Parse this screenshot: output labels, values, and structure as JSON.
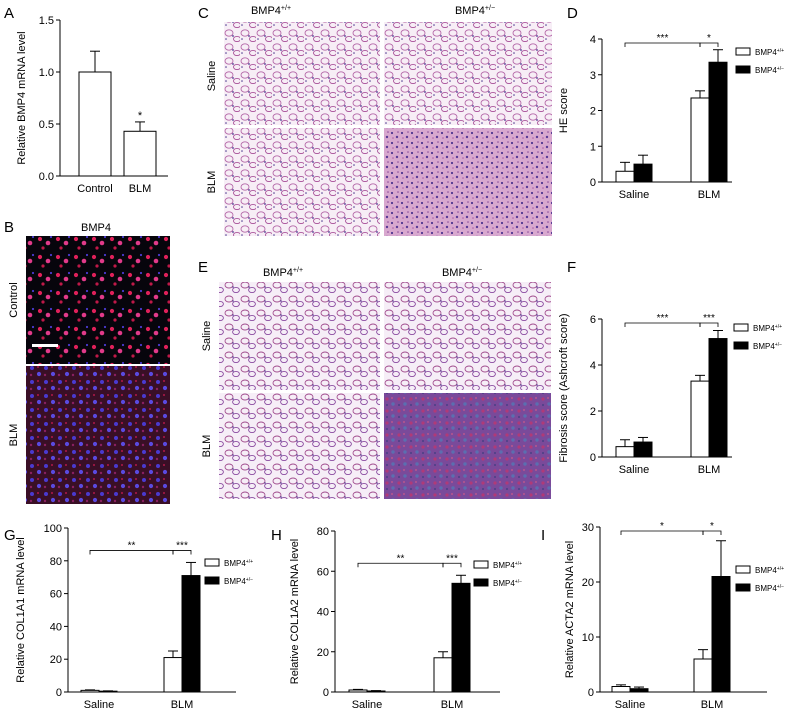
{
  "panel_letters": {
    "A": "A",
    "B": "B",
    "C": "C",
    "D": "D",
    "E": "E",
    "F": "F",
    "G": "G",
    "H": "H",
    "I": "I"
  },
  "micrographs": {
    "B": {
      "title": "BMP4",
      "row_labels": [
        "Control",
        "BLM"
      ]
    },
    "C": {
      "col_labels": [
        "BMP4+/+",
        "BMP4+/−"
      ],
      "col_base": "BMP4",
      "col_sups": [
        "+/+",
        "+/−"
      ],
      "row_labels": [
        "Saline",
        "BLM"
      ]
    },
    "E": {
      "col_labels": [
        "BMP4+/+",
        "BMP4+/−"
      ],
      "col_base": "BMP4",
      "col_sups": [
        "+/+",
        "+/−"
      ],
      "row_labels": [
        "Saline",
        "BLM"
      ]
    }
  },
  "legend": {
    "series_base": "BMP4",
    "series_sups": [
      "+/+",
      "+/−"
    ]
  },
  "colors": {
    "wildtype_bar": "#ffffff",
    "heterozygous_bar": "#000000",
    "axis": "#000000",
    "stain_he": "#a9529a",
    "stain_fluor": "#e0205a",
    "stain_nuclei": "#4a3ad0",
    "stain_trichrome": "#7a4a9a"
  },
  "chart_data": [
    {
      "panel": "A",
      "type": "bar",
      "categories": [
        "Control",
        "BLM"
      ],
      "series": [
        {
          "values": [
            1.0,
            0.43
          ],
          "errors": [
            0.2,
            0.09
          ]
        }
      ],
      "ylabel": "Relative BMP4 mRNA level",
      "ylim": [
        0,
        1.5
      ],
      "yticks": [
        0.0,
        0.5,
        1.0,
        1.5
      ],
      "ytick_labels": [
        "0.0",
        "0.5",
        "1.0",
        "1.5"
      ],
      "annotations": [
        {
          "text": "*",
          "over": "BLM"
        }
      ]
    },
    {
      "panel": "D",
      "type": "bar",
      "categories": [
        "Saline",
        "BLM"
      ],
      "series": [
        {
          "name": "BMP4+/+",
          "values": [
            0.3,
            2.35
          ],
          "errors": [
            0.25,
            0.2
          ]
        },
        {
          "name": "BMP4+/−",
          "values": [
            0.5,
            3.35
          ],
          "errors": [
            0.25,
            0.35
          ]
        }
      ],
      "ylabel": "HE score",
      "ylim": [
        0,
        4
      ],
      "yticks": [
        0,
        1,
        2,
        3,
        4
      ],
      "ytick_labels": [
        "0",
        "1",
        "2",
        "3",
        "4"
      ],
      "significance": [
        {
          "text": "***",
          "between": "Saline-BLM"
        },
        {
          "text": "*",
          "between": "BMP4+/+ vs BMP4+/− (BLM)"
        }
      ],
      "legend_position": "top-right"
    },
    {
      "panel": "F",
      "type": "bar",
      "categories": [
        "Saline",
        "BLM"
      ],
      "series": [
        {
          "name": "BMP4+/+",
          "values": [
            0.45,
            3.3
          ],
          "errors": [
            0.3,
            0.25
          ]
        },
        {
          "name": "BMP4+/−",
          "values": [
            0.65,
            5.15
          ],
          "errors": [
            0.2,
            0.35
          ]
        }
      ],
      "ylabel": "Fibrosis score (Ashcroft score)",
      "ylim": [
        0,
        6
      ],
      "yticks": [
        0,
        2,
        4,
        6
      ],
      "ytick_labels": [
        "0",
        "2",
        "4",
        "6"
      ],
      "significance": [
        {
          "text": "***",
          "between": "Saline-BLM"
        },
        {
          "text": "***",
          "between": "BMP4+/+ vs BMP4+/− (BLM)"
        }
      ],
      "legend_position": "top-right"
    },
    {
      "panel": "G",
      "type": "bar",
      "categories": [
        "Saline",
        "BLM"
      ],
      "series": [
        {
          "name": "BMP4+/+",
          "values": [
            1,
            21
          ],
          "errors": [
            0.3,
            4
          ]
        },
        {
          "name": "BMP4+/−",
          "values": [
            0.5,
            71
          ],
          "errors": [
            0.2,
            8
          ]
        }
      ],
      "ylabel": "Relative COL1A1 mRNA level",
      "ylim": [
        0,
        100
      ],
      "yticks": [
        0,
        20,
        40,
        60,
        80,
        100
      ],
      "ytick_labels": [
        "0",
        "20",
        "40",
        "60",
        "80",
        "100"
      ],
      "significance": [
        {
          "text": "**",
          "between": "Saline-BLM"
        },
        {
          "text": "***",
          "between": "BMP4+/+ vs BMP4+/− (BLM)"
        }
      ],
      "legend_position": "top-right"
    },
    {
      "panel": "H",
      "type": "bar",
      "categories": [
        "Saline",
        "BLM"
      ],
      "series": [
        {
          "name": "BMP4+/+",
          "values": [
            1,
            17
          ],
          "errors": [
            0.3,
            3
          ]
        },
        {
          "name": "BMP4+/−",
          "values": [
            0.5,
            54
          ],
          "errors": [
            0.2,
            4
          ]
        }
      ],
      "ylabel": "Relative COL1A2 mRNA level",
      "ylim": [
        0,
        80
      ],
      "yticks": [
        0,
        20,
        40,
        60,
        80
      ],
      "ytick_labels": [
        "0",
        "20",
        "40",
        "60",
        "80"
      ],
      "significance": [
        {
          "text": "**",
          "between": "Saline-BLM"
        },
        {
          "text": "***",
          "between": "BMP4+/+ vs BMP4+/− (BLM)"
        }
      ],
      "legend_position": "top-right"
    },
    {
      "panel": "I",
      "type": "bar",
      "categories": [
        "Saline",
        "BLM"
      ],
      "series": [
        {
          "name": "BMP4+/+",
          "values": [
            1,
            6
          ],
          "errors": [
            0.3,
            1.7
          ]
        },
        {
          "name": "BMP4+/−",
          "values": [
            0.6,
            21
          ],
          "errors": [
            0.3,
            6.5
          ]
        }
      ],
      "ylabel": "Relative ACTA2 mRNA level",
      "ylim": [
        0,
        30
      ],
      "yticks": [
        0,
        10,
        20,
        30
      ],
      "ytick_labels": [
        "0",
        "10",
        "20",
        "30"
      ],
      "significance": [
        {
          "text": "*",
          "between": "Saline-BLM"
        },
        {
          "text": "*",
          "between": "BMP4+/+ vs BMP4+/− (BLM)"
        }
      ],
      "legend_position": "top-right"
    }
  ]
}
